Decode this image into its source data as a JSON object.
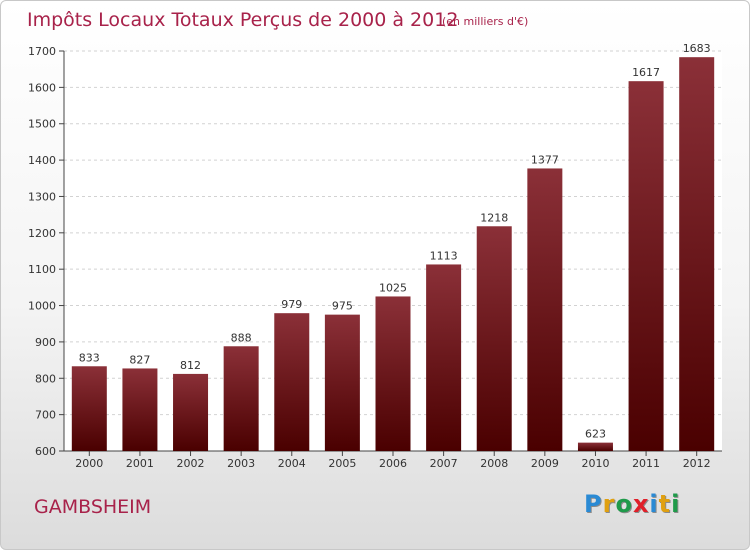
{
  "chart_data": {
    "type": "bar",
    "title": "Impôts Locaux Totaux Perçus de 2000 à 2012",
    "subtitle": "(en milliers d'€)",
    "xlabel": "",
    "ylabel": "",
    "categories": [
      "2000",
      "2001",
      "2002",
      "2003",
      "2004",
      "2005",
      "2006",
      "2007",
      "2008",
      "2009",
      "2010",
      "2011",
      "2012"
    ],
    "values": [
      833,
      827,
      812,
      888,
      979,
      975,
      1025,
      1113,
      1218,
      1377,
      623,
      1617,
      1683
    ],
    "value_labels": [
      "833",
      "827",
      "812",
      "888",
      "979",
      "975",
      "1025",
      "1113",
      "1218",
      "1377",
      "623",
      "1617",
      "1683"
    ],
    "ylim": [
      600,
      1700
    ],
    "yticks": [
      "600",
      "700",
      "800",
      "900",
      "1000",
      "1100",
      "1200",
      "1300",
      "1400",
      "1500",
      "1600",
      "1700"
    ],
    "grid": true,
    "bar_color_top": "#8b3038",
    "bar_color_bottom": "#4a0000"
  },
  "footer": {
    "town": "GAMBSHEIM",
    "logo": {
      "letters": [
        "P",
        "r",
        "o",
        "x",
        "i",
        "t",
        "i"
      ],
      "colors": [
        "#2a8ad4",
        "#e0a010",
        "#1f9a4a",
        "#e0202a",
        "#2a8ad4",
        "#e0a010",
        "#1f9a4a"
      ]
    }
  }
}
